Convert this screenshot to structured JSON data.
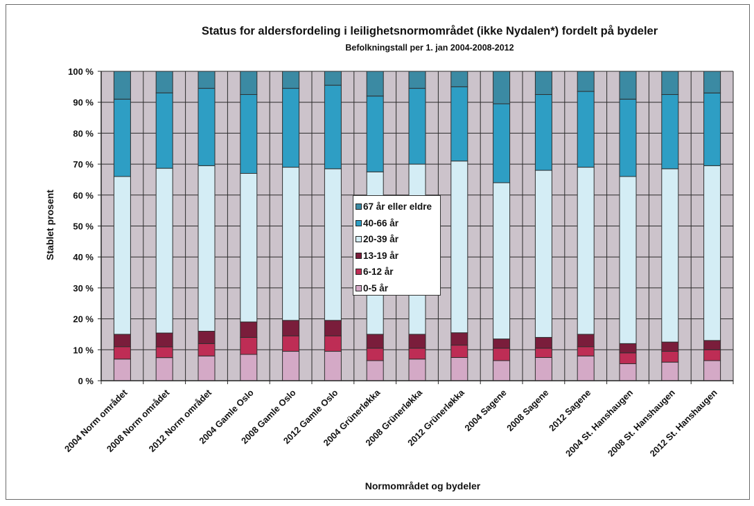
{
  "chart_data": {
    "type": "bar",
    "stacked": "percent",
    "title": "Status for aldersfordeling i leilighetsnormområdet (ikke Nydalen*) fordelt på bydeler",
    "subtitle": "Befolkningstall per 1. jan 2004-2008-2012",
    "xlabel": "Normområdet og bydeler",
    "ylabel": "Stablet prosent",
    "ylim": [
      0,
      100
    ],
    "yticks": [
      "0 %",
      "10 %",
      "20 %",
      "30 %",
      "40 %",
      "50 %",
      "60 %",
      "70 %",
      "80 %",
      "90 %",
      "100 %"
    ],
    "grid": true,
    "legend_position": "center",
    "categories": [
      "2004 Norm området",
      "2008 Norm området",
      "2012 Norm området",
      "2004 Gamle Oslo",
      "2008 Gamle Oslo",
      "2012 Gamle Oslo",
      "2004 Grünerløkka",
      "2008 Grünerløkka",
      "2012 Grünerløkka",
      "2004 Sagene",
      "2008 Sagene",
      "2012 Sagene",
      "2004 St. Hanshaugen",
      "2008 St. Hanshaugen",
      "2012 St. Hanshaugen"
    ],
    "series": [
      {
        "name": "0-5 år",
        "color": "#d4a9c6",
        "values": [
          7,
          7.5,
          8,
          8.5,
          9.5,
          9.5,
          6.5,
          7,
          7.5,
          6.5,
          7.5,
          8,
          5.5,
          6,
          6.5
        ]
      },
      {
        "name": "6-12 år",
        "color": "#be2d55",
        "values": [
          4,
          3.5,
          4,
          5.5,
          5,
          5,
          4,
          3.5,
          4,
          4,
          3,
          3,
          3.5,
          3.5,
          3.5
        ]
      },
      {
        "name": "13-19 år",
        "color": "#7a1d3b",
        "values": [
          4,
          4.5,
          4,
          5,
          5,
          5,
          4.5,
          4.5,
          4,
          3,
          3.5,
          4,
          3,
          3,
          3
        ]
      },
      {
        "name": "20-39 år",
        "color": "#d4edf5",
        "values": [
          51,
          53.5,
          53.5,
          48,
          49.5,
          49,
          52.5,
          55,
          55.5,
          50.5,
          54,
          54,
          54,
          56,
          56.5
        ]
      },
      {
        "name": "40-66 år",
        "color": "#2e9ec4",
        "values": [
          25,
          24.5,
          25,
          25.5,
          25.5,
          27,
          24.5,
          24.5,
          24,
          25.5,
          24.5,
          24.5,
          25,
          24,
          23.5
        ]
      },
      {
        "name": "67 år eller eldre",
        "color": "#3b8aa3",
        "values": [
          9,
          7,
          5.5,
          7.5,
          5.5,
          4.5,
          8,
          5.5,
          5,
          10.5,
          7.5,
          6.5,
          9,
          7.5,
          7
        ]
      }
    ],
    "colors": {
      "plot_background": "#ccc3cb",
      "gridline": "#2a2a2a",
      "bar_outline": "#2f2f2f"
    }
  }
}
